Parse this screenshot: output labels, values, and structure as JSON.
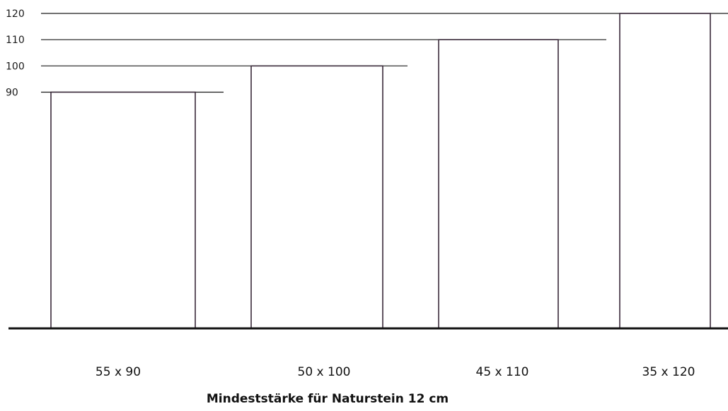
{
  "chart_data": {
    "type": "bar",
    "categories": [
      "55 x 90",
      "50 x 100",
      "45 x 110",
      "35 x 120"
    ],
    "widths": [
      55,
      50,
      45,
      35
    ],
    "values": [
      90,
      100,
      110,
      120
    ],
    "y_ticks": [
      "90",
      "100",
      "110",
      "120"
    ],
    "ylim": [
      0,
      120
    ],
    "caption": "Mindeststärke für Naturstein 12 cm",
    "grid": false,
    "colors": {
      "bar_fill": "#ffffff",
      "bar_stroke": "#3a2a3a",
      "line": "#1a1a1a",
      "baseline": "#111111"
    }
  }
}
